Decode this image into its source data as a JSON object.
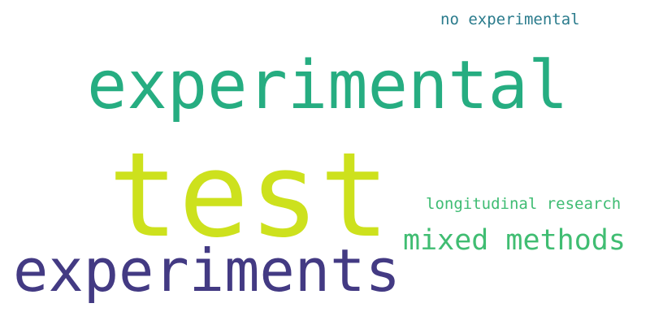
{
  "words": [
    {
      "text": "no experimental",
      "color": "#2a7b8c"
    },
    {
      "text": "experimental",
      "color": "#26ad81"
    },
    {
      "text": "test",
      "color": "#cde11d"
    },
    {
      "text": "longitudinal research",
      "color": "#3fbc73"
    },
    {
      "text": "mixed methods",
      "color": "#40bd72"
    },
    {
      "text": "experiments",
      "color": "#433a83"
    }
  ]
}
